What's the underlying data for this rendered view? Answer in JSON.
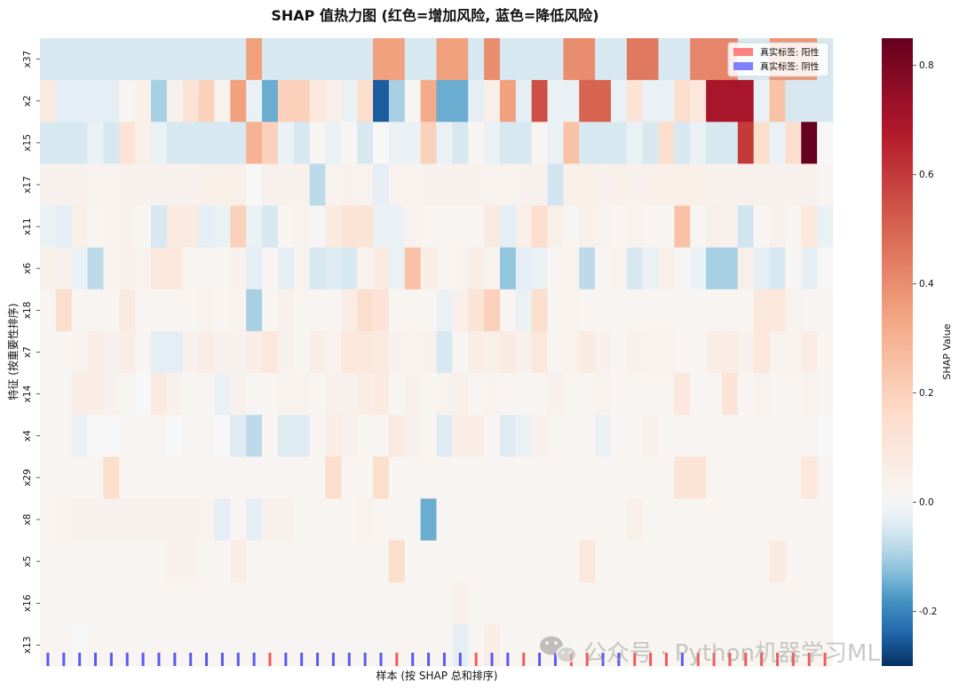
{
  "chart_data": {
    "type": "heatmap",
    "title": "SHAP 值热力图 (红色=增加风险, 蓝色=降低风险)",
    "xlabel": "样本 (按 SHAP 总和排序)",
    "ylabel": "特征 (按重要性排序)",
    "colorbar_label": "SHAP Value",
    "colormap": "RdBu_r",
    "vmin": -0.3,
    "vmax": 0.85,
    "colorbar_ticks": [
      -0.2,
      0.0,
      0.2,
      0.4,
      0.6,
      0.8
    ],
    "colorbar_tick_labels": [
      "-0.2",
      "0.0",
      "0.2",
      "0.4",
      "0.6",
      "0.8"
    ],
    "features": [
      "x37",
      "x2",
      "x15",
      "x17",
      "x11",
      "x6",
      "x18",
      "x7",
      "x14",
      "x4",
      "x29",
      "x8",
      "x5",
      "x16",
      "x13"
    ],
    "n_samples": 50,
    "values": [
      [
        -0.05,
        -0.05,
        -0.05,
        -0.05,
        -0.05,
        -0.05,
        -0.05,
        -0.05,
        -0.05,
        -0.05,
        -0.05,
        -0.05,
        -0.05,
        0.35,
        -0.05,
        -0.05,
        -0.05,
        -0.05,
        -0.05,
        -0.05,
        -0.05,
        0.35,
        0.35,
        -0.05,
        -0.05,
        0.35,
        0.35,
        -0.05,
        0.4,
        -0.05,
        -0.05,
        -0.05,
        -0.05,
        0.4,
        0.4,
        -0.05,
        -0.05,
        0.45,
        0.45,
        -0.05,
        -0.05,
        0.42,
        0.42,
        0.42,
        -0.05,
        -0.05,
        0.38,
        0.38,
        0.38,
        -0.05
      ],
      [
        0.08,
        -0.03,
        -0.03,
        -0.03,
        -0.03,
        0.02,
        0.05,
        -0.1,
        0.04,
        0.12,
        0.2,
        0.03,
        0.35,
        -0.02,
        -0.15,
        0.2,
        0.2,
        0.1,
        0.05,
        -0.02,
        0.15,
        -0.25,
        -0.1,
        0.02,
        0.32,
        -0.15,
        -0.15,
        -0.03,
        0.05,
        0.35,
        -0.03,
        0.55,
        -0.02,
        -0.02,
        0.5,
        0.5,
        -0.02,
        0.12,
        -0.02,
        -0.02,
        0.15,
        0.1,
        0.7,
        0.7,
        0.7,
        -0.02,
        0.25,
        -0.05,
        -0.05,
        -0.05
      ],
      [
        -0.05,
        -0.05,
        -0.05,
        -0.02,
        -0.05,
        0.12,
        0.05,
        -0.02,
        -0.05,
        -0.05,
        -0.05,
        -0.05,
        -0.05,
        0.3,
        0.2,
        -0.02,
        -0.05,
        0.02,
        -0.02,
        0.02,
        -0.05,
        0.0,
        -0.02,
        -0.02,
        0.2,
        -0.02,
        -0.05,
        0.02,
        -0.02,
        -0.05,
        -0.05,
        0.02,
        -0.02,
        0.25,
        -0.05,
        -0.05,
        -0.05,
        -0.02,
        -0.05,
        0.15,
        -0.05,
        -0.02,
        -0.05,
        -0.05,
        0.6,
        0.15,
        -0.02,
        0.15,
        0.85,
        0.0
      ],
      [
        0.04,
        0.04,
        0.04,
        0.03,
        0.03,
        0.04,
        0.04,
        0.04,
        0.04,
        0.04,
        0.05,
        0.05,
        0.05,
        0.0,
        0.04,
        0.04,
        0.04,
        -0.08,
        0.03,
        0.04,
        0.03,
        -0.03,
        0.03,
        0.03,
        0.04,
        0.04,
        0.04,
        0.04,
        0.03,
        0.03,
        0.04,
        0.04,
        -0.06,
        0.05,
        0.05,
        0.04,
        0.05,
        0.04,
        0.05,
        0.05,
        0.05,
        0.05,
        0.04,
        0.04,
        0.04,
        0.04,
        0.04,
        0.04,
        0.04,
        0.02
      ],
      [
        -0.02,
        -0.03,
        0.05,
        0.02,
        0.03,
        0.04,
        0.02,
        -0.05,
        0.08,
        0.08,
        -0.03,
        -0.02,
        0.2,
        -0.02,
        -0.05,
        0.02,
        0.03,
        0.01,
        0.08,
        0.12,
        0.12,
        -0.02,
        -0.02,
        0.03,
        0.02,
        0.02,
        0.02,
        0.02,
        0.08,
        -0.03,
        0.05,
        0.15,
        0.05,
        0.02,
        0.05,
        0.03,
        0.02,
        0.03,
        0.02,
        0.01,
        0.25,
        0.02,
        0.05,
        0.04,
        -0.06,
        0.02,
        0.04,
        0.02,
        0.1,
        -0.02
      ],
      [
        0.05,
        0.04,
        -0.02,
        -0.08,
        0.03,
        0.04,
        0.03,
        0.1,
        0.1,
        0.02,
        0.02,
        0.02,
        0.04,
        -0.03,
        0.02,
        -0.03,
        0.03,
        -0.05,
        -0.04,
        -0.05,
        0.03,
        0.08,
        -0.02,
        0.25,
        0.06,
        0.02,
        0.03,
        0.06,
        0.03,
        -0.12,
        -0.03,
        -0.02,
        0.02,
        0.03,
        -0.08,
        0.02,
        0.03,
        -0.05,
        -0.02,
        0.05,
        0.01,
        -0.02,
        -0.1,
        -0.1,
        0.05,
        -0.03,
        -0.05,
        0.02,
        -0.03,
        0.0
      ],
      [
        0.02,
        0.15,
        0.02,
        0.02,
        0.02,
        0.08,
        0.02,
        0.02,
        0.02,
        0.02,
        0.03,
        0.02,
        0.03,
        -0.1,
        0.02,
        0.04,
        0.02,
        0.02,
        0.02,
        0.06,
        0.15,
        0.12,
        0.02,
        0.02,
        0.02,
        -0.02,
        0.05,
        0.12,
        0.2,
        0.02,
        -0.02,
        0.15,
        0.02,
        0.03,
        0.02,
        0.02,
        0.02,
        0.02,
        0.02,
        0.02,
        0.02,
        0.02,
        0.02,
        0.02,
        0.02,
        0.1,
        0.1,
        0.03,
        0.02,
        0.02
      ],
      [
        0.02,
        0.02,
        0.03,
        0.06,
        0.04,
        0.06,
        0.02,
        -0.03,
        -0.03,
        0.04,
        0.06,
        0.04,
        0.04,
        0.06,
        0.1,
        0.04,
        0.02,
        0.06,
        0.03,
        0.1,
        0.1,
        0.08,
        0.04,
        0.03,
        0.04,
        -0.05,
        0.02,
        0.06,
        0.05,
        0.08,
        0.04,
        0.1,
        0.02,
        0.03,
        0.08,
        0.04,
        0.02,
        0.04,
        0.03,
        0.03,
        0.02,
        0.02,
        0.06,
        0.06,
        0.04,
        0.1,
        0.03,
        0.03,
        0.06,
        0.02
      ],
      [
        0.02,
        0.02,
        0.06,
        0.06,
        0.04,
        0.02,
        0.0,
        0.08,
        0.04,
        0.02,
        0.02,
        -0.02,
        0.04,
        0.02,
        0.02,
        0.03,
        0.03,
        0.02,
        0.04,
        0.04,
        0.06,
        0.08,
        0.02,
        0.04,
        0.02,
        0.03,
        0.05,
        0.02,
        0.03,
        0.02,
        0.02,
        0.02,
        0.04,
        0.02,
        0.02,
        0.03,
        0.02,
        0.02,
        0.02,
        0.02,
        0.1,
        0.02,
        0.02,
        0.12,
        0.02,
        0.03,
        0.02,
        0.02,
        0.03,
        0.02
      ],
      [
        0.02,
        0.02,
        -0.02,
        0.0,
        0.0,
        0.02,
        0.02,
        0.02,
        0.0,
        0.02,
        0.02,
        0.0,
        -0.04,
        -0.08,
        0.02,
        -0.04,
        -0.04,
        0.02,
        0.06,
        0.04,
        0.02,
        0.02,
        0.08,
        0.04,
        0.02,
        -0.04,
        0.06,
        0.06,
        0.02,
        -0.04,
        -0.02,
        0.04,
        0.02,
        0.02,
        0.02,
        -0.02,
        0.02,
        0.02,
        0.04,
        0.02,
        0.02,
        0.02,
        0.02,
        0.02,
        0.02,
        0.02,
        0.02,
        0.02,
        0.02,
        0.0
      ],
      [
        0.02,
        0.02,
        0.02,
        0.02,
        0.15,
        0.02,
        0.02,
        0.02,
        0.02,
        0.02,
        0.02,
        0.02,
        0.02,
        0.02,
        0.02,
        0.02,
        0.02,
        0.02,
        0.15,
        0.02,
        0.02,
        0.15,
        0.02,
        0.02,
        0.02,
        0.02,
        0.02,
        0.02,
        0.02,
        0.02,
        0.02,
        0.02,
        0.02,
        0.02,
        0.02,
        0.02,
        0.02,
        0.02,
        0.02,
        0.02,
        0.12,
        0.12,
        0.02,
        0.02,
        0.02,
        0.02,
        0.02,
        0.02,
        0.1,
        0.02
      ],
      [
        0.02,
        0.03,
        0.04,
        0.04,
        0.04,
        0.04,
        0.04,
        0.04,
        0.04,
        0.04,
        0.03,
        -0.03,
        0.02,
        -0.03,
        0.04,
        0.04,
        0.02,
        0.02,
        0.02,
        0.02,
        0.03,
        0.02,
        0.02,
        0.02,
        -0.15,
        0.02,
        0.02,
        0.02,
        0.02,
        0.02,
        0.02,
        0.02,
        0.02,
        0.02,
        0.02,
        0.02,
        0.02,
        0.05,
        0.02,
        0.02,
        0.02,
        0.02,
        0.02,
        0.02,
        0.02,
        0.02,
        0.02,
        0.02,
        0.02,
        0.02
      ],
      [
        0.02,
        0.02,
        0.02,
        0.02,
        0.02,
        0.02,
        0.02,
        0.02,
        0.04,
        0.04,
        0.02,
        0.02,
        0.06,
        0.02,
        0.02,
        0.02,
        0.02,
        0.02,
        0.02,
        0.02,
        0.02,
        0.02,
        0.15,
        0.02,
        0.02,
        0.02,
        0.02,
        0.02,
        0.02,
        0.02,
        0.02,
        0.02,
        0.02,
        0.02,
        0.1,
        0.02,
        0.02,
        0.02,
        0.02,
        0.02,
        0.02,
        0.02,
        0.02,
        0.02,
        0.02,
        0.02,
        0.08,
        0.02,
        0.02,
        0.02
      ],
      [
        0.02,
        0.02,
        0.02,
        0.02,
        0.02,
        0.02,
        0.02,
        0.02,
        0.02,
        0.02,
        0.02,
        0.02,
        0.02,
        0.02,
        0.02,
        0.02,
        0.02,
        0.02,
        0.02,
        0.02,
        0.02,
        0.02,
        0.02,
        0.02,
        0.02,
        0.02,
        0.04,
        0.02,
        0.02,
        0.02,
        0.02,
        0.02,
        0.02,
        0.02,
        0.02,
        0.02,
        0.02,
        0.02,
        0.02,
        0.02,
        0.02,
        0.02,
        0.02,
        0.02,
        0.02,
        0.02,
        0.02,
        0.02,
        0.02,
        0.02
      ],
      [
        0.02,
        0.02,
        0.0,
        0.02,
        0.02,
        0.02,
        0.02,
        0.02,
        0.02,
        0.02,
        0.02,
        0.02,
        0.02,
        0.02,
        0.02,
        0.02,
        0.02,
        0.02,
        0.02,
        0.02,
        0.02,
        0.02,
        0.02,
        0.02,
        0.02,
        0.02,
        -0.03,
        0.02,
        0.06,
        0.02,
        0.02,
        0.02,
        0.02,
        0.02,
        0.02,
        0.02,
        0.02,
        0.02,
        0.02,
        0.02,
        0.02,
        0.02,
        0.02,
        0.02,
        0.02,
        0.02,
        0.02,
        0.02,
        0.02,
        0.02
      ]
    ],
    "true_labels": [
      0,
      0,
      0,
      0,
      0,
      0,
      0,
      0,
      0,
      0,
      0,
      0,
      0,
      0,
      1,
      0,
      0,
      0,
      0,
      0,
      0,
      0,
      1,
      0,
      0,
      0,
      0,
      1,
      0,
      0,
      1,
      0,
      0,
      1,
      1,
      0,
      0,
      1,
      1,
      1,
      0,
      1,
      1,
      1,
      1,
      1,
      1,
      1,
      1,
      1
    ],
    "label_colors": {
      "positive": "#f05a5a",
      "negative": "#5a5af0"
    },
    "legend": {
      "placement": "top-right",
      "positive_label": "真实标签: 阳性",
      "negative_label": "真实标签: 阴性",
      "positive_swatch": "#ff8080",
      "negative_swatch": "#8080ff"
    }
  },
  "watermark": {
    "icon": "wechat-icon",
    "text": "公众号 · Python机器学习ML"
  }
}
